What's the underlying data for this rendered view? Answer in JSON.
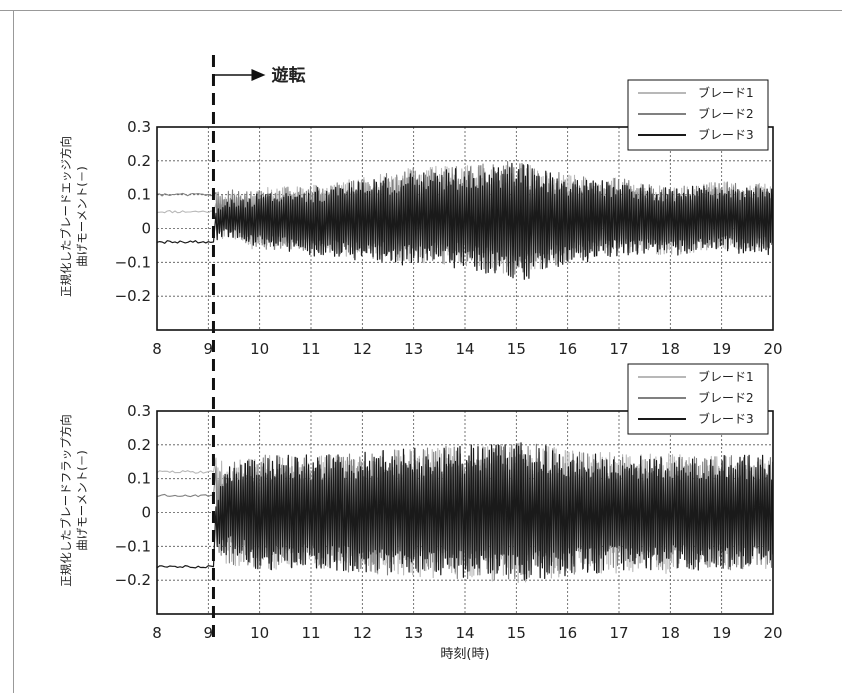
{
  "annotation": {
    "label": "遊転",
    "x": 9.1
  },
  "chart_data": [
    {
      "type": "line",
      "ylabel_lines": [
        "正規化したブレードエッジ方向",
        "曲げモーメント(－)"
      ],
      "xlabel": "",
      "xlim": [
        8,
        20
      ],
      "ylim": [
        -0.3,
        0.3
      ],
      "xticks": [
        "8",
        "9",
        "10",
        "11",
        "12",
        "13",
        "14",
        "15",
        "16",
        "17",
        "18",
        "19",
        "20"
      ],
      "yticks": [
        "0.3",
        "0.2",
        "0.1",
        "0",
        "−0.1",
        "−0.2"
      ],
      "grid": true,
      "legend_position": "top-right",
      "series": [
        {
          "name": "ブレード1",
          "color": "#b8b8b8",
          "x": [
            8,
            9.1,
            9.15,
            9.3,
            9.5,
            9.8,
            10,
            11,
            12,
            13,
            14,
            15,
            16,
            17,
            18,
            19,
            20
          ],
          "center": [
            0.05,
            0.05,
            0.02,
            0.03,
            0.04,
            0.02,
            0.03,
            0.03,
            0.03,
            0.04,
            0.04,
            0.03,
            0.03,
            0.04,
            0.02,
            0.04,
            0.03
          ],
          "amplitude": [
            0,
            0,
            0.06,
            0.06,
            0.07,
            0.08,
            0.09,
            0.1,
            0.12,
            0.14,
            0.15,
            0.17,
            0.13,
            0.11,
            0.1,
            0.1,
            0.1
          ]
        },
        {
          "name": "ブレード2",
          "color": "#808080",
          "x": [
            8,
            9.1,
            9.15,
            9.3,
            9.5,
            9.8,
            10,
            11,
            12,
            13,
            14,
            15,
            16,
            17,
            18,
            19,
            20
          ],
          "center": [
            0.1,
            0.1,
            0.06,
            0.05,
            0.05,
            0.03,
            0.03,
            0.03,
            0.03,
            0.04,
            0.04,
            0.03,
            0.03,
            0.04,
            0.02,
            0.04,
            0.03
          ],
          "amplitude": [
            0,
            0,
            0.05,
            0.06,
            0.07,
            0.08,
            0.09,
            0.1,
            0.12,
            0.14,
            0.15,
            0.17,
            0.13,
            0.11,
            0.1,
            0.1,
            0.1
          ]
        },
        {
          "name": "ブレード3",
          "color": "#1a1a1a",
          "x": [
            8,
            9.1,
            9.15,
            9.3,
            9.5,
            9.8,
            10,
            11,
            12,
            13,
            14,
            15,
            16,
            17,
            18,
            19,
            20
          ],
          "center": [
            -0.04,
            -0.04,
            0.01,
            0.03,
            0.03,
            0.02,
            0.03,
            0.02,
            0.02,
            0.03,
            0.03,
            0.02,
            0.02,
            0.03,
            0.02,
            0.03,
            0.02
          ],
          "amplitude": [
            0,
            0,
            0.05,
            0.05,
            0.06,
            0.07,
            0.08,
            0.1,
            0.12,
            0.14,
            0.15,
            0.18,
            0.13,
            0.11,
            0.1,
            0.1,
            0.1
          ]
        }
      ]
    },
    {
      "type": "line",
      "ylabel_lines": [
        "正規化したブレードフラップ方向",
        "曲げモーメント(－)"
      ],
      "xlabel": "時刻(時)",
      "xlim": [
        8,
        20
      ],
      "ylim": [
        -0.3,
        0.3
      ],
      "xticks": [
        "8",
        "9",
        "10",
        "11",
        "12",
        "13",
        "14",
        "15",
        "16",
        "17",
        "18",
        "19",
        "20"
      ],
      "yticks": [
        "0.3",
        "0.2",
        "0.1",
        "0",
        "−0.1",
        "−0.2"
      ],
      "grid": true,
      "legend_position": "top-right",
      "series": [
        {
          "name": "ブレード1",
          "color": "#b8b8b8",
          "x": [
            8,
            9.1,
            9.15,
            9.3,
            9.5,
            9.8,
            10,
            11,
            12,
            13,
            14,
            15,
            16,
            17,
            18,
            19,
            20
          ],
          "center": [
            0.12,
            0.12,
            0.05,
            0.0,
            0.0,
            0.0,
            0.0,
            0.0,
            0.0,
            0.0,
            0.0,
            0.0,
            0.0,
            0.0,
            0.0,
            0.0,
            0.0
          ],
          "amplitude": [
            0,
            0,
            0.12,
            0.15,
            0.16,
            0.16,
            0.17,
            0.17,
            0.18,
            0.19,
            0.2,
            0.21,
            0.19,
            0.18,
            0.18,
            0.17,
            0.17
          ]
        },
        {
          "name": "ブレード2",
          "color": "#808080",
          "x": [
            8,
            9.1,
            9.15,
            9.3,
            9.5,
            9.8,
            10,
            11,
            12,
            13,
            14,
            15,
            16,
            17,
            18,
            19,
            20
          ],
          "center": [
            0.05,
            0.05,
            0.02,
            0.0,
            0.0,
            0.0,
            0.0,
            0.0,
            0.0,
            0.0,
            0.0,
            0.0,
            0.0,
            0.0,
            0.0,
            0.0,
            0.0
          ],
          "amplitude": [
            0,
            0,
            0.12,
            0.15,
            0.16,
            0.16,
            0.17,
            0.17,
            0.18,
            0.19,
            0.2,
            0.21,
            0.19,
            0.17,
            0.17,
            0.17,
            0.17
          ]
        },
        {
          "name": "ブレード3",
          "color": "#1a1a1a",
          "x": [
            8,
            9.1,
            9.15,
            9.3,
            9.5,
            9.8,
            10,
            11,
            12,
            13,
            14,
            15,
            16,
            17,
            18,
            19,
            20
          ],
          "center": [
            -0.16,
            -0.16,
            -0.05,
            0.0,
            0.02,
            0.0,
            0.0,
            0.0,
            0.0,
            0.0,
            0.0,
            0.0,
            0.0,
            0.0,
            0.0,
            0.0,
            0.0
          ],
          "amplitude": [
            0,
            0,
            0.1,
            0.13,
            0.14,
            0.16,
            0.17,
            0.17,
            0.18,
            0.19,
            0.2,
            0.21,
            0.19,
            0.17,
            0.17,
            0.17,
            0.17
          ]
        }
      ]
    }
  ]
}
